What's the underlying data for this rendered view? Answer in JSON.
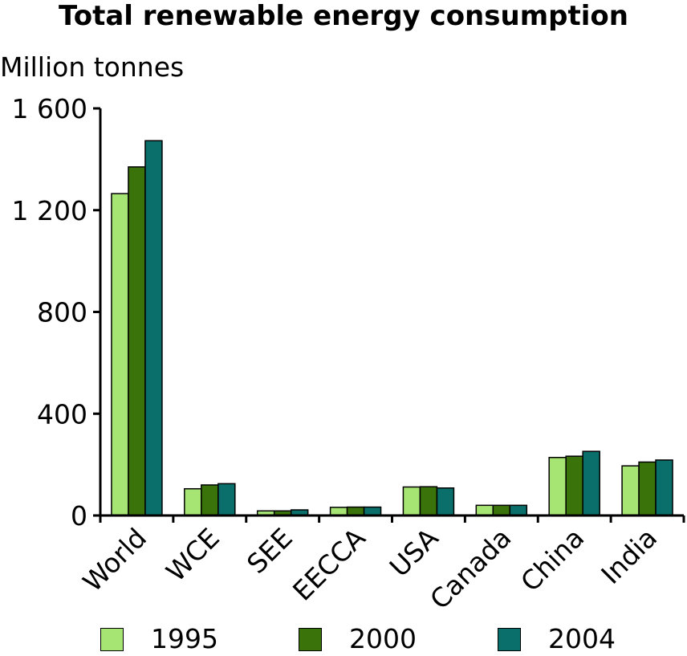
{
  "chart_data": {
    "type": "bar",
    "title": "Total renewable energy consumption",
    "ylabel": "Million tonnes",
    "xlabel": "",
    "ylim": [
      0,
      1600
    ],
    "yticks": [
      0,
      400,
      800,
      1200,
      1600
    ],
    "ytick_labels": [
      "0",
      "400",
      "800",
      "1 200",
      "1 600"
    ],
    "categories": [
      "World",
      "WCE",
      "SEE",
      "EECCA",
      "USA",
      "Canada",
      "China",
      "India"
    ],
    "series": [
      {
        "name": "1995",
        "color": "#a6e573",
        "values": [
          1265,
          105,
          18,
          32,
          112,
          40,
          228,
          195
        ]
      },
      {
        "name": "2000",
        "color": "#3a7309",
        "values": [
          1370,
          120,
          18,
          33,
          113,
          40,
          233,
          210
        ]
      },
      {
        "name": "2004",
        "color": "#0a6e6a",
        "values": [
          1473,
          125,
          22,
          33,
          108,
          40,
          252,
          218
        ]
      }
    ],
    "grid": false,
    "legend_position": "bottom"
  }
}
